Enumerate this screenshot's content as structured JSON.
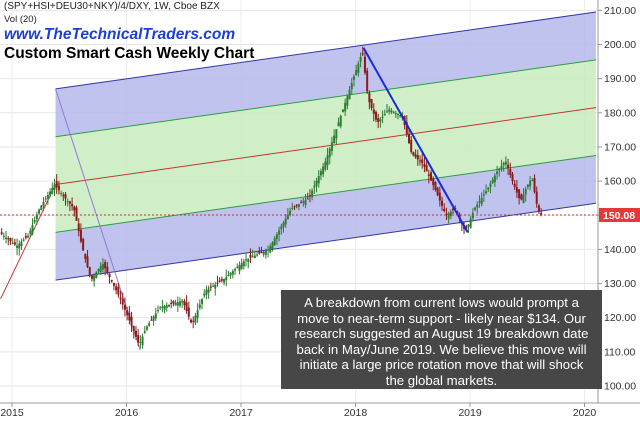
{
  "header": {
    "symbol_line": "(SPY+HSI+DEU30+NKY)/4/DXY, 1W, Cboe BZX",
    "volume_label": "Vol (20)",
    "website": "www.TheTechnicalTraders.com",
    "title": "Custom Smart Cash Weekly Chart"
  },
  "annotation": {
    "text": "A breakdown from current lows would prompt a move to near-term support - likely near $134. Our research suggested an August 19 breakdown date back in May/June 2019. We believe this move will initiate a large price rotation move that will shock the global markets."
  },
  "colors": {
    "up_candle": "#2e7d32",
    "down_candle": "#8b1a1a",
    "outer_channel_fill": "#b4b8ea",
    "inner_channel_fill": "#c8ecc0",
    "channel_edge_blue": "#3333aa",
    "channel_green_line": "#2e9d3e",
    "median_line": "#c0392b",
    "trend_line": "#1a2bd6",
    "price_line": "#d32f2f",
    "price_tag": "#e53935"
  },
  "chart_data": {
    "type": "candlestick",
    "title": "Custom Smart Cash Weekly Chart",
    "series_name": "(SPY+HSI+DEU30+NKY)/4/DXY",
    "interval": "1W",
    "x_axis": {
      "ticks": [
        "2015",
        "2016",
        "2017",
        "2018",
        "2019",
        "2020"
      ]
    },
    "y_axis": {
      "side": "right",
      "range": [
        98,
        212
      ],
      "ticks": [
        "100.00",
        "110.00",
        "120.00",
        "130.00",
        "140.00",
        "150.00",
        "160.00",
        "170.00",
        "180.00",
        "190.00",
        "200.00",
        "210.00"
      ]
    },
    "last_price": 150.08,
    "last_price_label": "150.08",
    "path": [
      [
        2014.9,
        145
      ],
      [
        2015.05,
        141
      ],
      [
        2015.15,
        144
      ],
      [
        2015.25,
        152
      ],
      [
        2015.38,
        159
      ],
      [
        2015.45,
        156
      ],
      [
        2015.55,
        152
      ],
      [
        2015.62,
        141
      ],
      [
        2015.7,
        131
      ],
      [
        2015.8,
        136
      ],
      [
        2015.95,
        126
      ],
      [
        2016.05,
        118
      ],
      [
        2016.12,
        112
      ],
      [
        2016.18,
        117
      ],
      [
        2016.3,
        123
      ],
      [
        2016.5,
        125
      ],
      [
        2016.58,
        118
      ],
      [
        2016.7,
        128
      ],
      [
        2016.85,
        131
      ],
      [
        2016.95,
        134
      ],
      [
        2017.05,
        137
      ],
      [
        2017.25,
        140
      ],
      [
        2017.45,
        152
      ],
      [
        2017.6,
        155
      ],
      [
        2017.75,
        166
      ],
      [
        2017.9,
        181
      ],
      [
        2018.0,
        191
      ],
      [
        2018.07,
        198
      ],
      [
        2018.12,
        184
      ],
      [
        2018.2,
        177
      ],
      [
        2018.3,
        181
      ],
      [
        2018.42,
        179
      ],
      [
        2018.5,
        168
      ],
      [
        2018.6,
        165
      ],
      [
        2018.7,
        158
      ],
      [
        2018.8,
        150
      ],
      [
        2018.88,
        152
      ],
      [
        2018.97,
        145
      ],
      [
        2019.05,
        152
      ],
      [
        2019.15,
        157
      ],
      [
        2019.25,
        163
      ],
      [
        2019.32,
        166
      ],
      [
        2019.38,
        160
      ],
      [
        2019.45,
        154
      ],
      [
        2019.5,
        158
      ],
      [
        2019.55,
        161
      ],
      [
        2019.6,
        152
      ],
      [
        2019.63,
        150
      ]
    ],
    "channel": {
      "start": {
        "x": 2015.38,
        "mid": 159.0
      },
      "end": {
        "x": 2020.1,
        "mid": 181.5
      },
      "lines": [
        {
          "offset": 28.0,
          "color": "#3333aa",
          "role": "outer-upper"
        },
        {
          "offset": 14.0,
          "color": "#2e9d3e",
          "role": "inner-upper"
        },
        {
          "offset": 0.0,
          "color": "#c0392b",
          "role": "median"
        },
        {
          "offset": -14.0,
          "color": "#2e9d3e",
          "role": "inner-lower"
        },
        {
          "offset": -28.0,
          "color": "#3333aa",
          "role": "outer-lower"
        }
      ]
    },
    "pitchfork_handle": {
      "from": [
        2014.9,
        125.5
      ],
      "to": [
        2015.38,
        159.0
      ]
    },
    "trend_line": {
      "from": [
        2018.07,
        199
      ],
      "to": [
        2018.98,
        145
      ]
    }
  }
}
